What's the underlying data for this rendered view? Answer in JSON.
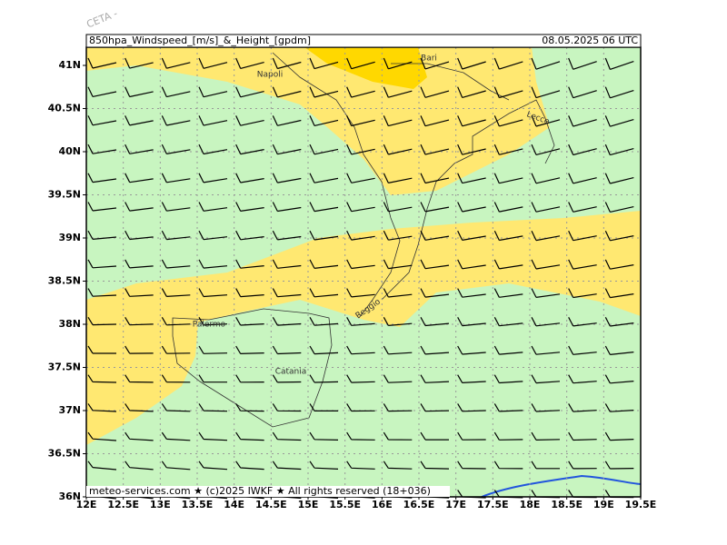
{
  "watermark": "CETA - ",
  "header": {
    "title": "850hpa_Windspeed_[m/s]_&_Height_[gpdm]",
    "datetime": "08.05.2025 06 UTC"
  },
  "y_axis": {
    "labels": [
      "41N",
      "40.5N",
      "40N",
      "39.5N",
      "39N",
      "38.5N",
      "38N",
      "37.5N",
      "37N",
      "36.5N",
      "36N"
    ]
  },
  "x_axis": {
    "labels": [
      "12E",
      "12.5E",
      "13E",
      "13.5E",
      "14E",
      "14.5E",
      "15E",
      "15.5E",
      "16E",
      "16.5E",
      "17E",
      "17.5E",
      "18E",
      "18.5E",
      "19E",
      "19.5E"
    ]
  },
  "cities": [
    "Bari",
    "Napoli",
    "Lecce",
    "Palermo",
    "Reggio",
    "Catania"
  ],
  "footer": "meteo-services.com ★ (c)2025 IWKF ★ All rights reserved (18+036)"
}
